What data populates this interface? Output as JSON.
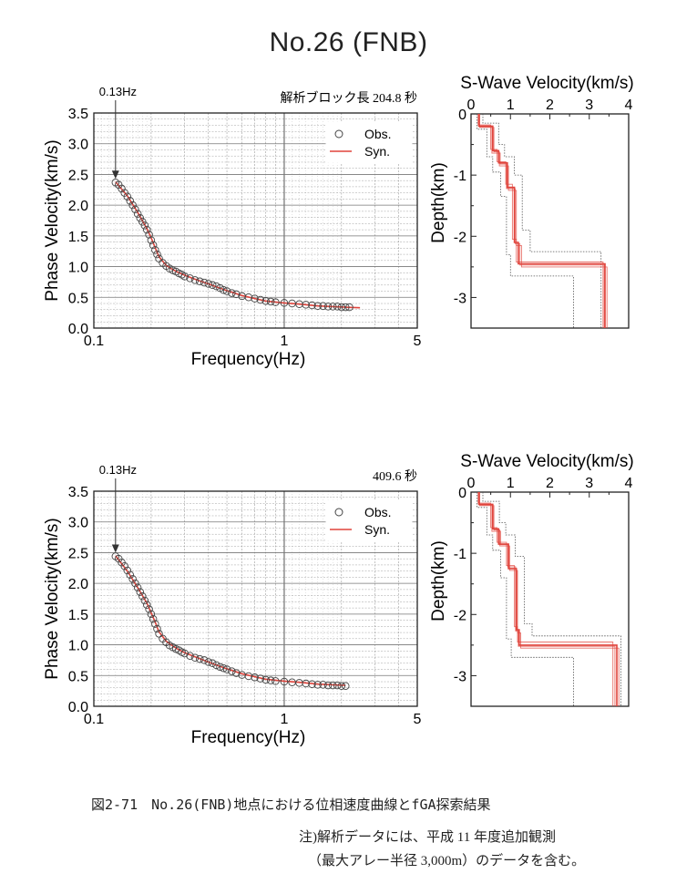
{
  "page": {
    "title": "No.26 (FNB)",
    "caption": "図2-71　No.26(FNB)地点における位相速度曲線とfGA探索結果",
    "note_line1": "注)解析データには、平成 11 年度追加観測",
    "note_line2": "（最大アレー半径 3,000m）のデータを含む。"
  },
  "colors": {
    "obs": "#444444",
    "syn": "#e0443c",
    "grid": "#888888",
    "bound": "#555555"
  },
  "chart_data": [
    {
      "type": "scatter",
      "title": "",
      "annotation": "解析ブロック長 204.8 秒",
      "arrow_label": "0.13Hz",
      "xlabel": "Frequency(Hz)",
      "ylabel": "Phase Velocity(km/s)",
      "x_scale": "log",
      "xlim": [
        0.1,
        5
      ],
      "ylim": [
        0,
        3.5
      ],
      "xticks": [
        "0.1",
        "1",
        "5"
      ],
      "yticks": [
        "0.0",
        "0.5",
        "1.0",
        "1.5",
        "2.0",
        "2.5",
        "3.0",
        "3.5"
      ],
      "legend": [
        "Obs.",
        "Syn."
      ],
      "legend_position": "top-right",
      "grid": true,
      "series": [
        {
          "name": "Obs.",
          "x": [
            0.13,
            0.135,
            0.14,
            0.145,
            0.15,
            0.155,
            0.16,
            0.165,
            0.17,
            0.175,
            0.18,
            0.185,
            0.19,
            0.195,
            0.2,
            0.205,
            0.21,
            0.215,
            0.22,
            0.23,
            0.24,
            0.25,
            0.26,
            0.27,
            0.28,
            0.29,
            0.3,
            0.32,
            0.34,
            0.36,
            0.38,
            0.4,
            0.42,
            0.44,
            0.46,
            0.48,
            0.5,
            0.53,
            0.56,
            0.6,
            0.65,
            0.7,
            0.75,
            0.8,
            0.85,
            0.9,
            1.0,
            1.1,
            1.2,
            1.3,
            1.4,
            1.5,
            1.6,
            1.7,
            1.8,
            1.9,
            2.0,
            2.1,
            2.2
          ],
          "y": [
            2.37,
            2.33,
            2.27,
            2.2,
            2.14,
            2.07,
            2.0,
            1.93,
            1.86,
            1.79,
            1.73,
            1.67,
            1.6,
            1.52,
            1.43,
            1.35,
            1.27,
            1.2,
            1.13,
            1.06,
            1.01,
            0.97,
            0.94,
            0.92,
            0.89,
            0.87,
            0.84,
            0.81,
            0.78,
            0.76,
            0.74,
            0.72,
            0.7,
            0.68,
            0.65,
            0.62,
            0.6,
            0.57,
            0.55,
            0.52,
            0.5,
            0.48,
            0.46,
            0.44,
            0.43,
            0.42,
            0.41,
            0.4,
            0.39,
            0.38,
            0.37,
            0.36,
            0.36,
            0.35,
            0.35,
            0.35,
            0.34,
            0.34,
            0.34
          ]
        },
        {
          "name": "Syn.",
          "x": [
            0.13,
            0.15,
            0.17,
            0.19,
            0.2,
            0.21,
            0.22,
            0.24,
            0.26,
            0.28,
            0.3,
            0.35,
            0.4,
            0.45,
            0.5,
            0.6,
            0.7,
            0.8,
            1.0,
            1.2,
            1.5,
            1.8,
            2.1,
            2.5
          ],
          "y": [
            2.38,
            2.15,
            1.88,
            1.62,
            1.47,
            1.31,
            1.16,
            1.02,
            0.95,
            0.9,
            0.86,
            0.78,
            0.72,
            0.66,
            0.61,
            0.53,
            0.48,
            0.44,
            0.41,
            0.39,
            0.36,
            0.35,
            0.34,
            0.33
          ]
        }
      ]
    },
    {
      "type": "line",
      "title": "S-Wave Velocity(km/s)",
      "xlabel": "",
      "ylabel": "Depth(km)",
      "xlim": [
        0,
        4
      ],
      "ylim": [
        -3.5,
        0
      ],
      "xticks": [
        "0",
        "1",
        "2",
        "3",
        "4"
      ],
      "yticks": [
        "0",
        "-1",
        "-2",
        "-3"
      ],
      "series": [
        {
          "name": "",
          "role": "best",
          "velocity": [
            0.2,
            0.55,
            0.7,
            0.92,
            1.1,
            1.2,
            3.4
          ],
          "depth_top": [
            0,
            -0.2,
            -0.6,
            -0.8,
            -1.2,
            -2.1,
            -2.45
          ]
        },
        {
          "name": "",
          "role": "model",
          "velocity": [
            0.22,
            0.58,
            0.72,
            0.95,
            1.15,
            1.28,
            3.45
          ],
          "depth_top": [
            0,
            -0.22,
            -0.62,
            -0.85,
            -1.25,
            -2.15,
            -2.5
          ]
        },
        {
          "name": "",
          "role": "model",
          "velocity": [
            0.18,
            0.5,
            0.66,
            0.88,
            1.05,
            1.15,
            3.35
          ],
          "depth_top": [
            0,
            -0.18,
            -0.58,
            -0.78,
            -1.15,
            -2.05,
            -2.42
          ]
        },
        {
          "name": "",
          "role": "model",
          "velocity": [
            0.21,
            0.53,
            0.74,
            0.9,
            1.12,
            1.24,
            3.38
          ],
          "depth_top": [
            0,
            -0.21,
            -0.64,
            -0.82,
            -1.22,
            -2.12,
            -2.47
          ]
        },
        {
          "name": "",
          "role": "bound",
          "velocity": [
            0.3,
            0.7,
            0.85,
            1.1,
            1.3,
            1.5,
            3.3
          ],
          "depth_top": [
            0,
            -0.15,
            -0.5,
            -0.7,
            -1.0,
            -1.9,
            -2.25
          ]
        },
        {
          "name": "",
          "role": "bound",
          "velocity": [
            0.15,
            0.4,
            0.55,
            0.75,
            0.9,
            1.0,
            2.6
          ],
          "depth_top": [
            0,
            -0.25,
            -0.7,
            -0.95,
            -1.35,
            -2.3,
            -2.65
          ]
        }
      ]
    },
    {
      "type": "scatter",
      "title": "",
      "annotation": "409.6 秒",
      "arrow_label": "0.13Hz",
      "xlabel": "Frequency(Hz)",
      "ylabel": "Phase Velocity(km/s)",
      "x_scale": "log",
      "xlim": [
        0.1,
        5
      ],
      "ylim": [
        0,
        3.5
      ],
      "xticks": [
        "0.1",
        "1",
        "5"
      ],
      "yticks": [
        "0.0",
        "0.5",
        "1.0",
        "1.5",
        "2.0",
        "2.5",
        "3.0",
        "3.5"
      ],
      "legend": [
        "Obs.",
        "Syn."
      ],
      "legend_position": "top-right",
      "grid": true,
      "series": [
        {
          "name": "Obs.",
          "x": [
            0.13,
            0.135,
            0.14,
            0.145,
            0.15,
            0.155,
            0.16,
            0.165,
            0.17,
            0.175,
            0.18,
            0.185,
            0.19,
            0.195,
            0.2,
            0.205,
            0.21,
            0.215,
            0.22,
            0.23,
            0.24,
            0.25,
            0.26,
            0.27,
            0.28,
            0.29,
            0.3,
            0.32,
            0.34,
            0.36,
            0.38,
            0.4,
            0.42,
            0.44,
            0.46,
            0.48,
            0.5,
            0.53,
            0.56,
            0.6,
            0.65,
            0.7,
            0.75,
            0.8,
            0.85,
            0.9,
            1.0,
            1.1,
            1.2,
            1.3,
            1.4,
            1.5,
            1.6,
            1.7,
            1.8,
            1.9,
            2.0,
            2.1
          ],
          "y": [
            2.44,
            2.4,
            2.34,
            2.28,
            2.21,
            2.14,
            2.07,
            2.0,
            1.93,
            1.86,
            1.79,
            1.72,
            1.65,
            1.58,
            1.5,
            1.42,
            1.34,
            1.26,
            1.18,
            1.1,
            1.04,
            0.99,
            0.96,
            0.93,
            0.91,
            0.88,
            0.86,
            0.82,
            0.79,
            0.77,
            0.75,
            0.72,
            0.7,
            0.67,
            0.64,
            0.62,
            0.6,
            0.57,
            0.54,
            0.51,
            0.49,
            0.47,
            0.45,
            0.43,
            0.42,
            0.41,
            0.4,
            0.39,
            0.38,
            0.37,
            0.36,
            0.35,
            0.35,
            0.34,
            0.34,
            0.34,
            0.33,
            0.33
          ]
        },
        {
          "name": "Syn.",
          "x": [
            0.13,
            0.15,
            0.17,
            0.19,
            0.2,
            0.21,
            0.22,
            0.24,
            0.26,
            0.28,
            0.3,
            0.35,
            0.4,
            0.45,
            0.5,
            0.6,
            0.7,
            0.8,
            1.0,
            1.2,
            1.5,
            1.8,
            2.1
          ],
          "y": [
            2.45,
            2.2,
            1.93,
            1.68,
            1.52,
            1.37,
            1.21,
            1.06,
            0.98,
            0.92,
            0.87,
            0.79,
            0.72,
            0.66,
            0.61,
            0.53,
            0.48,
            0.44,
            0.41,
            0.39,
            0.36,
            0.35,
            0.34
          ]
        }
      ]
    },
    {
      "type": "line",
      "title": "S-Wave Velocity(km/s)",
      "xlabel": "",
      "ylabel": "Depth(km)",
      "xlim": [
        0,
        4
      ],
      "ylim": [
        -3.5,
        0
      ],
      "xticks": [
        "0",
        "1",
        "2",
        "3",
        "4"
      ],
      "yticks": [
        "0",
        "-1",
        "-2",
        "-3"
      ],
      "series": [
        {
          "name": "",
          "role": "best",
          "velocity": [
            0.2,
            0.55,
            0.7,
            0.95,
            1.15,
            1.22,
            3.7
          ],
          "depth_top": [
            0,
            -0.2,
            -0.6,
            -0.85,
            -1.25,
            -2.25,
            -2.5
          ]
        },
        {
          "name": "",
          "role": "model",
          "velocity": [
            0.22,
            0.58,
            0.73,
            0.98,
            1.18,
            1.26,
            3.75
          ],
          "depth_top": [
            0,
            -0.22,
            -0.62,
            -0.88,
            -1.28,
            -2.3,
            -2.55
          ]
        },
        {
          "name": "",
          "role": "model",
          "velocity": [
            0.18,
            0.5,
            0.66,
            0.9,
            1.1,
            1.18,
            3.6
          ],
          "depth_top": [
            0,
            -0.18,
            -0.58,
            -0.82,
            -1.2,
            -2.2,
            -2.45
          ]
        },
        {
          "name": "",
          "role": "model",
          "velocity": [
            0.21,
            0.53,
            0.75,
            0.93,
            1.13,
            1.2,
            3.65
          ],
          "depth_top": [
            0,
            -0.21,
            -0.64,
            -0.86,
            -1.22,
            -2.27,
            -2.52
          ]
        },
        {
          "name": "",
          "role": "bound",
          "velocity": [
            0.3,
            0.72,
            0.88,
            1.12,
            1.35,
            1.55,
            3.8
          ],
          "depth_top": [
            0,
            -0.15,
            -0.5,
            -0.7,
            -1.05,
            -2.15,
            -2.35
          ]
        },
        {
          "name": "",
          "role": "bound",
          "velocity": [
            0.15,
            0.4,
            0.55,
            0.75,
            0.9,
            1.02,
            2.6
          ],
          "depth_top": [
            0,
            -0.25,
            -0.7,
            -0.95,
            -1.4,
            -2.4,
            -2.7
          ]
        }
      ]
    }
  ]
}
